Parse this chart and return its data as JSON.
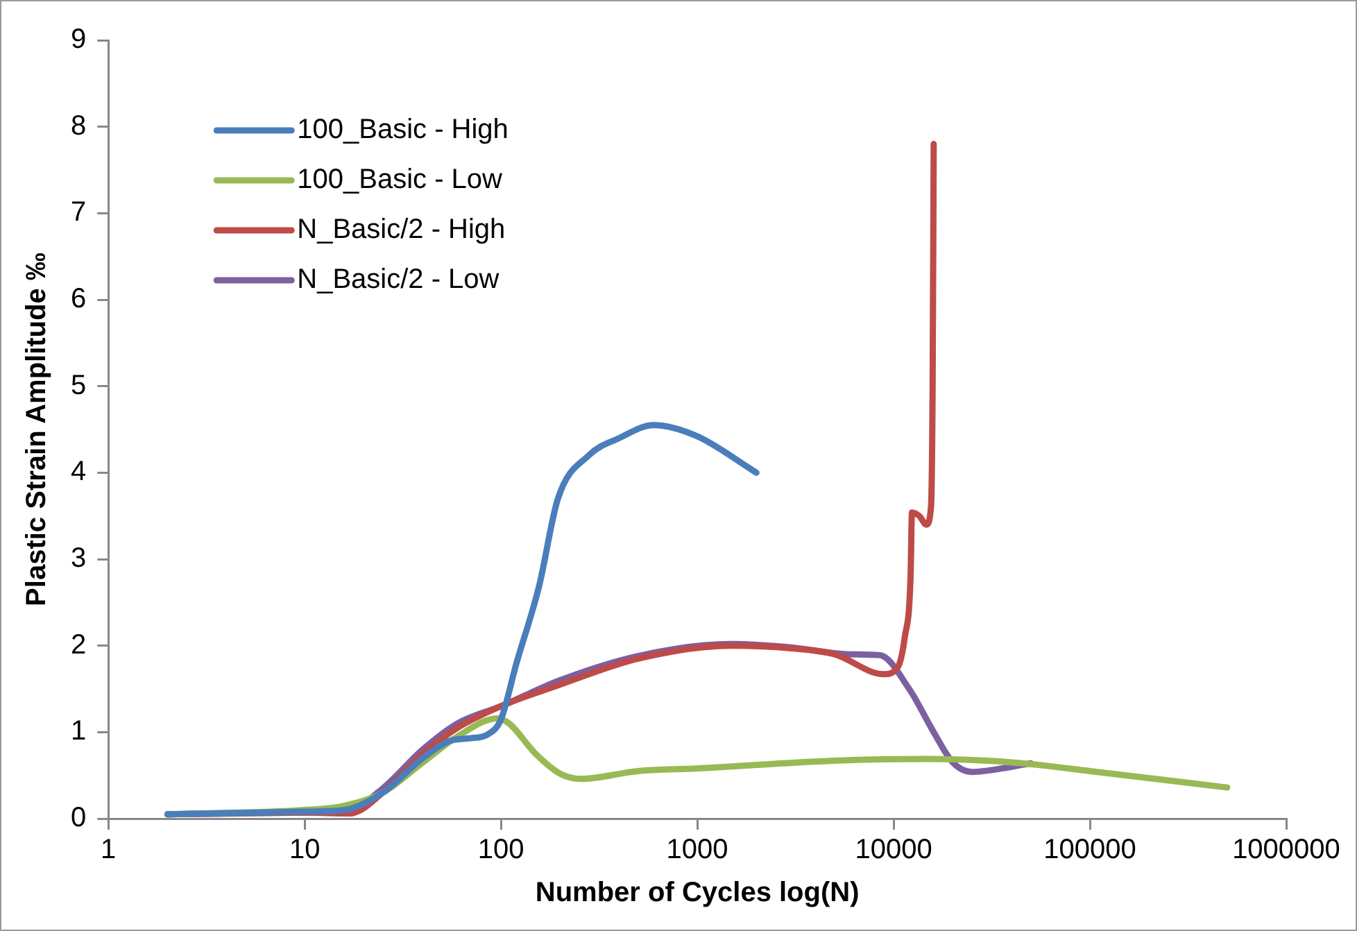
{
  "chart_data": {
    "type": "line",
    "xlabel": "Number of Cycles log(N)",
    "ylabel": "Plastic Strain Amplitude ‰",
    "log": "x",
    "xlim": [
      1,
      1000000
    ],
    "xticks": [
      1,
      10,
      100,
      1000,
      10000,
      100000,
      1000000
    ],
    "ylim": [
      0,
      9
    ],
    "yticks": [
      0,
      1,
      2,
      3,
      4,
      5,
      6,
      7,
      8,
      9
    ],
    "grid": false,
    "legend": "top left",
    "marker": "none",
    "line_style": "solid",
    "series": [
      {
        "name": "100_Basic - High",
        "color": "#4a7ebb",
        "x": [
          2,
          10,
          16,
          25,
          40,
          55,
          70,
          85,
          100,
          120,
          156,
          195,
          280,
          400,
          600,
          1000,
          2000
        ],
        "values": [
          0.05,
          0.08,
          0.1,
          0.3,
          0.7,
          0.9,
          0.93,
          0.97,
          1.15,
          1.8,
          2.68,
          3.7,
          4.2,
          4.4,
          4.55,
          4.42,
          4.0
        ]
      },
      {
        "name": "100_Basic - Low",
        "color": "#98b954",
        "x": [
          2,
          10,
          16,
          25,
          40,
          60,
          96,
          110,
          150,
          200,
          255,
          500,
          1000,
          5000,
          15000,
          30000,
          50000,
          100000,
          500000
        ],
        "values": [
          0.05,
          0.1,
          0.15,
          0.3,
          0.65,
          0.95,
          1.16,
          1.1,
          0.75,
          0.52,
          0.46,
          0.55,
          0.58,
          0.67,
          0.69,
          0.67,
          0.63,
          0.55,
          0.36
        ]
      },
      {
        "name": "N_Basic/2 - High",
        "color": "#be4b48",
        "x": [
          2,
          10,
          17,
          25,
          40,
          60,
          100,
          200,
          500,
          1500,
          3000,
          5000,
          8900,
          10500,
          11400,
          12200,
          12400,
          13500,
          14700,
          15500,
          15800,
          16000
        ],
        "values": [
          0.05,
          0.07,
          0.06,
          0.3,
          0.75,
          1.05,
          1.3,
          1.55,
          1.85,
          2.0,
          1.97,
          1.9,
          1.67,
          1.75,
          2.1,
          2.8,
          3.54,
          3.5,
          3.4,
          3.6,
          5.0,
          7.8
        ]
      },
      {
        "name": "N_Basic/2 - Low",
        "color": "#7d60a0",
        "x": [
          2,
          10,
          17,
          25,
          40,
          60,
          100,
          200,
          500,
          1500,
          3000,
          6000,
          8500,
          12000,
          16000,
          20000,
          25000,
          40000,
          50000
        ],
        "values": [
          0.05,
          0.07,
          0.1,
          0.35,
          0.8,
          1.1,
          1.3,
          1.6,
          1.88,
          2.02,
          1.98,
          1.9,
          1.89,
          1.5,
          1.0,
          0.65,
          0.54,
          0.6,
          0.64
        ]
      }
    ]
  }
}
